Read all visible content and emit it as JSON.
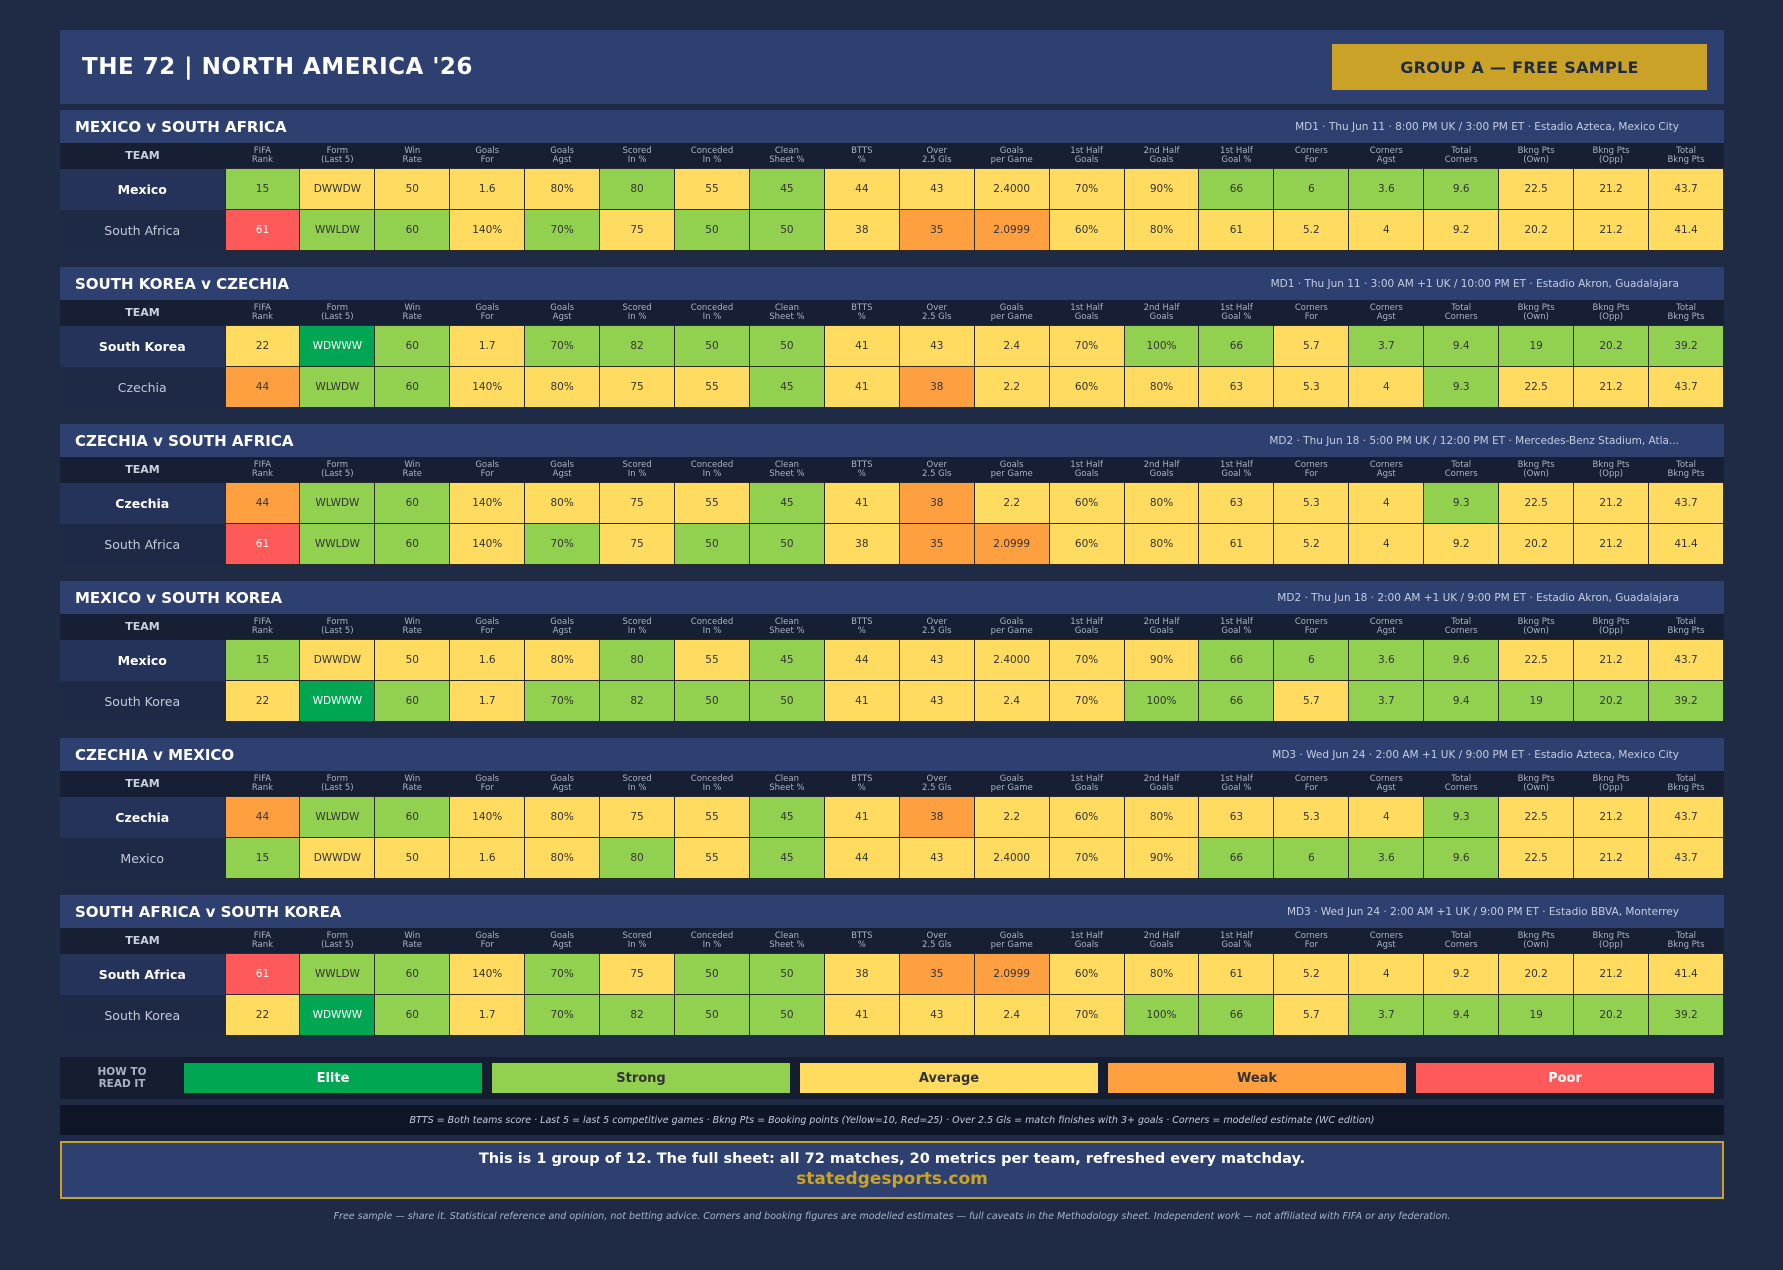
{
  "header": {
    "title": "THE 72  |  NORTH AMERICA '26",
    "badge": "GROUP A — FREE SAMPLE"
  },
  "columns": [
    "TEAM",
    "FIFA\nRank",
    "Form\n(Last 5)",
    "Win\nRate",
    "Goals\nFor",
    "Goals\nAgst",
    "Scored\nIn %",
    "Conceded\nIn %",
    "Clean\nSheet %",
    "BTTS\n%",
    "Over\n2.5 Gls",
    "Goals\nper Game",
    "1st Half\nGoals",
    "2nd Half\nGoals",
    "1st Half\nGoal %",
    "Corners\nFor",
    "Corners\nAgst",
    "Total\nCorners",
    "Bkng Pts\n(Own)",
    "Bkng Pts\n(Opp)",
    "Total\nBkng Pts"
  ],
  "colors": {
    "elite": "#00a651",
    "strong": "#92d050",
    "average": "#ffdc60",
    "weak": "#ffa040",
    "poor": "#ff5a5a"
  },
  "matches": [
    {
      "title": "MEXICO  v  SOUTH AFRICA",
      "info": "MD1  ·  Thu Jun 11  ·  8:00 PM UK / 3:00 PM ET  ·  Estadio Azteca, Mexico City",
      "rows": [
        {
          "team": "Mexico",
          "values": [
            "15",
            "DWWDW",
            "50",
            "1.6",
            "80%",
            "80",
            "55",
            "45",
            "44",
            "43",
            "2.4000",
            "70%",
            "90%",
            "66",
            "6",
            "3.6",
            "9.6",
            "22.5",
            "21.2",
            "43.7"
          ],
          "ratings": [
            "S",
            "A",
            "A",
            "A",
            "A",
            "S",
            "A",
            "S",
            "A",
            "A",
            "A",
            "A",
            "A",
            "S",
            "S",
            "S",
            "S",
            "A",
            "A",
            "A"
          ]
        },
        {
          "team": "South Africa",
          "values": [
            "61",
            "WWLDW",
            "60",
            "140%",
            "70%",
            "75",
            "50",
            "50",
            "38",
            "35",
            "2.0999",
            "60%",
            "80%",
            "61",
            "5.2",
            "4",
            "9.2",
            "20.2",
            "21.2",
            "41.4"
          ],
          "ratings": [
            "P",
            "S",
            "S",
            "A",
            "S",
            "A",
            "S",
            "S",
            "A",
            "W",
            "W",
            "A",
            "A",
            "A",
            "A",
            "A",
            "A",
            "A",
            "A",
            "A"
          ]
        }
      ]
    },
    {
      "title": "SOUTH KOREA  v  CZECHIA",
      "info": "MD1  ·  Thu Jun 11  ·  3:00 AM +1 UK / 10:00 PM ET  ·  Estadio Akron, Guadalajara",
      "rows": [
        {
          "team": "South Korea",
          "values": [
            "22",
            "WDWWW",
            "60",
            "1.7",
            "70%",
            "82",
            "50",
            "50",
            "41",
            "43",
            "2.4",
            "70%",
            "100%",
            "66",
            "5.7",
            "3.7",
            "9.4",
            "19",
            "20.2",
            "39.2"
          ],
          "ratings": [
            "A",
            "E",
            "S",
            "A",
            "S",
            "S",
            "S",
            "S",
            "A",
            "A",
            "A",
            "A",
            "S",
            "S",
            "A",
            "S",
            "S",
            "S",
            "S",
            "S"
          ]
        },
        {
          "team": "Czechia",
          "values": [
            "44",
            "WLWDW",
            "60",
            "140%",
            "80%",
            "75",
            "55",
            "45",
            "41",
            "38",
            "2.2",
            "60%",
            "80%",
            "63",
            "5.3",
            "4",
            "9.3",
            "22.5",
            "21.2",
            "43.7"
          ],
          "ratings": [
            "W",
            "S",
            "S",
            "A",
            "A",
            "A",
            "A",
            "S",
            "A",
            "W",
            "A",
            "A",
            "A",
            "A",
            "A",
            "A",
            "S",
            "A",
            "A",
            "A"
          ]
        }
      ]
    },
    {
      "title": "CZECHIA  v  SOUTH AFRICA",
      "info": "MD2  ·  Thu Jun 18  ·  5:00 PM UK / 12:00 PM ET  ·  Mercedes-Benz Stadium, Atla...",
      "rows": [
        {
          "team": "Czechia",
          "values": [
            "44",
            "WLWDW",
            "60",
            "140%",
            "80%",
            "75",
            "55",
            "45",
            "41",
            "38",
            "2.2",
            "60%",
            "80%",
            "63",
            "5.3",
            "4",
            "9.3",
            "22.5",
            "21.2",
            "43.7"
          ],
          "ratings": [
            "W",
            "S",
            "S",
            "A",
            "A",
            "A",
            "A",
            "S",
            "A",
            "W",
            "A",
            "A",
            "A",
            "A",
            "A",
            "A",
            "S",
            "A",
            "A",
            "A"
          ]
        },
        {
          "team": "South Africa",
          "values": [
            "61",
            "WWLDW",
            "60",
            "140%",
            "70%",
            "75",
            "50",
            "50",
            "38",
            "35",
            "2.0999",
            "60%",
            "80%",
            "61",
            "5.2",
            "4",
            "9.2",
            "20.2",
            "21.2",
            "41.4"
          ],
          "ratings": [
            "P",
            "S",
            "S",
            "A",
            "S",
            "A",
            "S",
            "S",
            "A",
            "W",
            "W",
            "A",
            "A",
            "A",
            "A",
            "A",
            "A",
            "A",
            "A",
            "A"
          ]
        }
      ]
    },
    {
      "title": "MEXICO  v  SOUTH KOREA",
      "info": "MD2  ·  Thu Jun 18  ·  2:00 AM +1 UK / 9:00 PM ET  ·  Estadio Akron, Guadalajara",
      "rows": [
        {
          "team": "Mexico",
          "values": [
            "15",
            "DWWDW",
            "50",
            "1.6",
            "80%",
            "80",
            "55",
            "45",
            "44",
            "43",
            "2.4000",
            "70%",
            "90%",
            "66",
            "6",
            "3.6",
            "9.6",
            "22.5",
            "21.2",
            "43.7"
          ],
          "ratings": [
            "S",
            "A",
            "A",
            "A",
            "A",
            "S",
            "A",
            "S",
            "A",
            "A",
            "A",
            "A",
            "A",
            "S",
            "S",
            "S",
            "S",
            "A",
            "A",
            "A"
          ]
        },
        {
          "team": "South Korea",
          "values": [
            "22",
            "WDWWW",
            "60",
            "1.7",
            "70%",
            "82",
            "50",
            "50",
            "41",
            "43",
            "2.4",
            "70%",
            "100%",
            "66",
            "5.7",
            "3.7",
            "9.4",
            "19",
            "20.2",
            "39.2"
          ],
          "ratings": [
            "A",
            "E",
            "S",
            "A",
            "S",
            "S",
            "S",
            "S",
            "A",
            "A",
            "A",
            "A",
            "S",
            "S",
            "A",
            "S",
            "S",
            "S",
            "S",
            "S"
          ]
        }
      ]
    },
    {
      "title": "CZECHIA  v  MEXICO",
      "info": "MD3  ·  Wed Jun 24  ·  2:00 AM +1 UK / 9:00 PM ET  ·  Estadio Azteca, Mexico City",
      "rows": [
        {
          "team": "Czechia",
          "values": [
            "44",
            "WLWDW",
            "60",
            "140%",
            "80%",
            "75",
            "55",
            "45",
            "41",
            "38",
            "2.2",
            "60%",
            "80%",
            "63",
            "5.3",
            "4",
            "9.3",
            "22.5",
            "21.2",
            "43.7"
          ],
          "ratings": [
            "W",
            "S",
            "S",
            "A",
            "A",
            "A",
            "A",
            "S",
            "A",
            "W",
            "A",
            "A",
            "A",
            "A",
            "A",
            "A",
            "S",
            "A",
            "A",
            "A"
          ]
        },
        {
          "team": "Mexico",
          "values": [
            "15",
            "DWWDW",
            "50",
            "1.6",
            "80%",
            "80",
            "55",
            "45",
            "44",
            "43",
            "2.4000",
            "70%",
            "90%",
            "66",
            "6",
            "3.6",
            "9.6",
            "22.5",
            "21.2",
            "43.7"
          ],
          "ratings": [
            "S",
            "A",
            "A",
            "A",
            "A",
            "S",
            "A",
            "S",
            "A",
            "A",
            "A",
            "A",
            "A",
            "S",
            "S",
            "S",
            "S",
            "A",
            "A",
            "A"
          ]
        }
      ]
    },
    {
      "title": "SOUTH AFRICA  v  SOUTH KOREA",
      "info": "MD3  ·  Wed Jun 24  ·  2:00 AM +1 UK / 9:00 PM ET  ·  Estadio BBVA, Monterrey",
      "rows": [
        {
          "team": "South Africa",
          "values": [
            "61",
            "WWLDW",
            "60",
            "140%",
            "70%",
            "75",
            "50",
            "50",
            "38",
            "35",
            "2.0999",
            "60%",
            "80%",
            "61",
            "5.2",
            "4",
            "9.2",
            "20.2",
            "21.2",
            "41.4"
          ],
          "ratings": [
            "P",
            "S",
            "S",
            "A",
            "S",
            "A",
            "S",
            "S",
            "A",
            "W",
            "W",
            "A",
            "A",
            "A",
            "A",
            "A",
            "A",
            "A",
            "A",
            "A"
          ]
        },
        {
          "team": "South Korea",
          "values": [
            "22",
            "WDWWW",
            "60",
            "1.7",
            "70%",
            "82",
            "50",
            "50",
            "41",
            "43",
            "2.4",
            "70%",
            "100%",
            "66",
            "5.7",
            "3.7",
            "9.4",
            "19",
            "20.2",
            "39.2"
          ],
          "ratings": [
            "A",
            "E",
            "S",
            "A",
            "S",
            "S",
            "S",
            "S",
            "A",
            "A",
            "A",
            "A",
            "S",
            "S",
            "A",
            "S",
            "S",
            "S",
            "S",
            "S"
          ]
        }
      ]
    }
  ],
  "legend": {
    "label": "HOW TO\nREAD IT",
    "items": [
      {
        "label": "Elite",
        "rating": "E"
      },
      {
        "label": "Strong",
        "rating": "S"
      },
      {
        "label": "Average",
        "rating": "A"
      },
      {
        "label": "Weak",
        "rating": "W"
      },
      {
        "label": "Poor",
        "rating": "P"
      }
    ]
  },
  "notes": "BTTS = Both teams score  ·  Last 5 = last 5 competitive games  ·  Bkng Pts = Booking points (Yellow=10, Red=25)  ·  Over 2.5 Gls = match finishes with 3+ goals  ·  Corners = modelled estimate (WC edition)",
  "cta": {
    "line": "This is 1 group of 12.  The full sheet: all 72 matches, 20 metrics per team, refreshed every matchday.",
    "link": "statedgesports.com"
  },
  "footer": "Free sample — share it.  Statistical reference and opinion, not betting advice.  Corners and booking figures are modelled estimates — full caveats in the Methodology sheet.  Independent work — not affiliated with FIFA or any federation."
}
